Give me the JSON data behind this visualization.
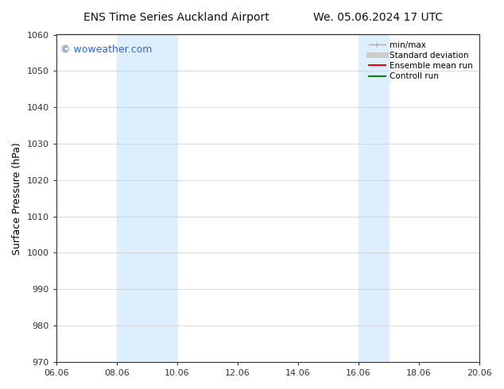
{
  "title_left": "ENS Time Series Auckland Airport",
  "title_right": "We. 05.06.2024 17 UTC",
  "ylabel": "Surface Pressure (hPa)",
  "xtick_labels": [
    "06.06",
    "08.06",
    "10.06",
    "12.06",
    "14.06",
    "16.06",
    "18.06",
    "20.06"
  ],
  "xtick_positions": [
    0,
    2,
    4,
    6,
    8,
    10,
    12,
    14
  ],
  "ylim": [
    970,
    1060
  ],
  "ytick_step": 10,
  "background_color": "#ffffff",
  "plot_bg_color": "#ffffff",
  "shaded_bands": [
    {
      "x_start": 2,
      "x_end": 4,
      "color": "#ddeeff"
    },
    {
      "x_start": 10,
      "x_end": 11,
      "color": "#ddeeff"
    }
  ],
  "watermark_text": "© woweather.com",
  "watermark_color": "#3366cc",
  "legend_entries": [
    {
      "label": "min/max",
      "color": "#aaaaaa",
      "style": "minmax"
    },
    {
      "label": "Standard deviation",
      "color": "#cccccc",
      "style": "thick"
    },
    {
      "label": "Ensemble mean run",
      "color": "#ff0000",
      "style": "line"
    },
    {
      "label": "Controll run",
      "color": "#008800",
      "style": "line"
    }
  ],
  "font_size_title": 10,
  "font_size_axis": 9,
  "font_size_ticks": 8,
  "font_size_legend": 7.5,
  "font_size_watermark": 9,
  "grid_color": "#cccccc",
  "grid_linewidth": 0.5,
  "tick_color": "#333333",
  "spine_color": "#333333"
}
